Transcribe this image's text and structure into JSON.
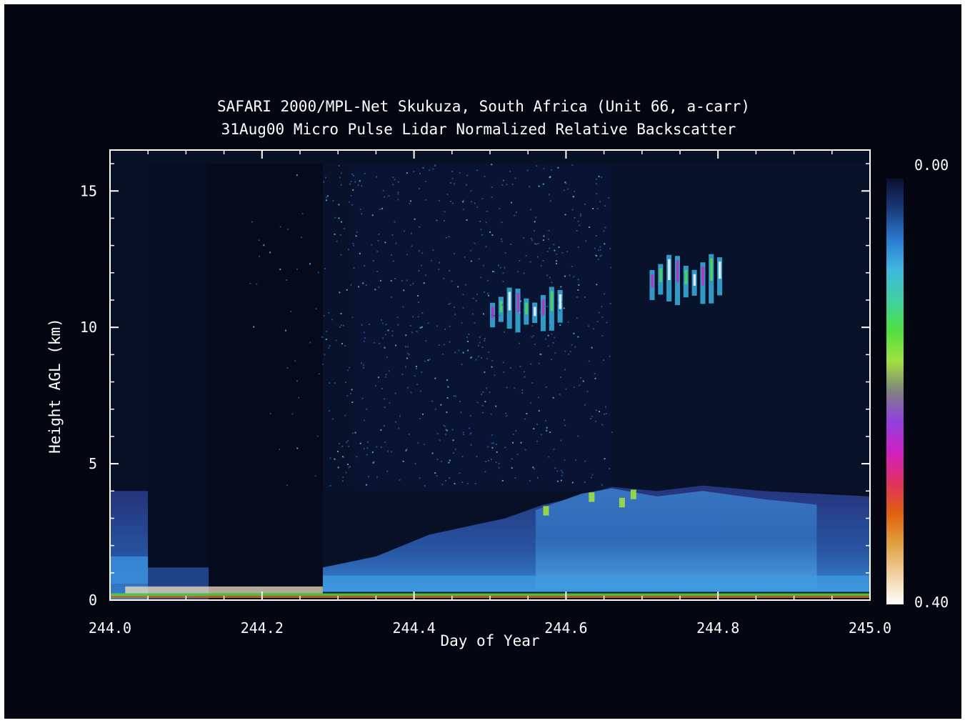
{
  "chart_data": {
    "type": "heatmap",
    "title": "SAFARI 2000/MPL-Net Skukuza, South Africa (Unit 66, a-carr)",
    "subtitle": "31Aug00 Micro Pulse Lidar Normalized Relative Backscatter",
    "xlabel": "Day of Year",
    "ylabel": "Height AGL (km)",
    "xlim": [
      244.0,
      245.0
    ],
    "ylim": [
      0,
      16.5
    ],
    "x_ticks": [
      "244.0",
      "244.2",
      "244.4",
      "244.6",
      "244.8",
      "245.0"
    ],
    "x_tick_values": [
      244.0,
      244.2,
      244.4,
      244.6,
      244.8,
      245.0
    ],
    "y_ticks": [
      "0",
      "5",
      "10",
      "15"
    ],
    "y_tick_values": [
      0,
      5,
      10,
      15
    ],
    "colorbar": {
      "min_label": "0.00",
      "max_label": "0.40",
      "range": [
        0.0,
        0.4
      ],
      "colors": [
        "#0a1030",
        "#1a3a7a",
        "#2a7ad0",
        "#40b8e0",
        "#40d0a0",
        "#50e040",
        "#a0e040",
        "#808080",
        "#9040e0",
        "#d020c0",
        "#e03060",
        "#e06010",
        "#e0a040",
        "#f0d0a0",
        "#ffffff"
      ]
    },
    "data_gap": {
      "x_start": 244.0,
      "x_end": 244.28,
      "top_km": 16.0
    },
    "cloud_layers": [
      {
        "name": "cirrus",
        "x_start": 244.5,
        "x_end": 244.6,
        "y_bottom_km": 10.0,
        "y_top_km": 11.2
      },
      {
        "name": "cirrus",
        "x_start": 244.71,
        "x_end": 244.81,
        "y_bottom_km": 11.0,
        "y_top_km": 12.4
      }
    ],
    "boundary_layer": {
      "x_start": 244.0,
      "x_end": 245.0,
      "top_km_start": 4.0,
      "top_km_max": 4.2
    }
  }
}
